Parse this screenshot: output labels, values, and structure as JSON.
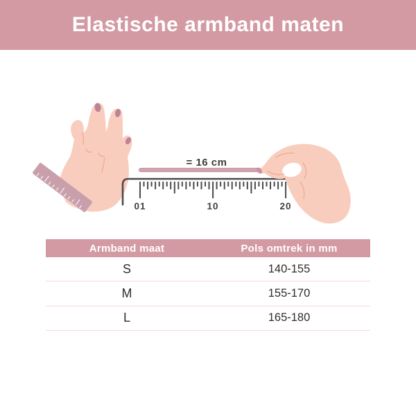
{
  "header": {
    "title": "Elastische armband maten"
  },
  "diagram": {
    "measure_label": "= 16 cm",
    "ruler_ticks": [
      "01",
      "10",
      "20"
    ],
    "icons": {
      "left": "hand-with-wrist-tape-icon",
      "tape": "measuring-tape-icon",
      "ruler": "ruler-icon",
      "right": "pinching-hand-icon"
    }
  },
  "table": {
    "columns": [
      "Armband maat",
      "Pols omtrek in mm"
    ],
    "rows": [
      {
        "size": "S",
        "range": "140-155"
      },
      {
        "size": "M",
        "range": "155-170"
      },
      {
        "size": "L",
        "range": "165-180"
      }
    ]
  },
  "colors": {
    "banner": "#d49aa3",
    "table_header": "#d49aa3",
    "divider": "#f3dcda",
    "skin": "#f9cdbd",
    "tape": "#c99fac",
    "tape_line": "#d2a3ae",
    "nail": "#bd8498",
    "ink": "#4a4a4a"
  }
}
